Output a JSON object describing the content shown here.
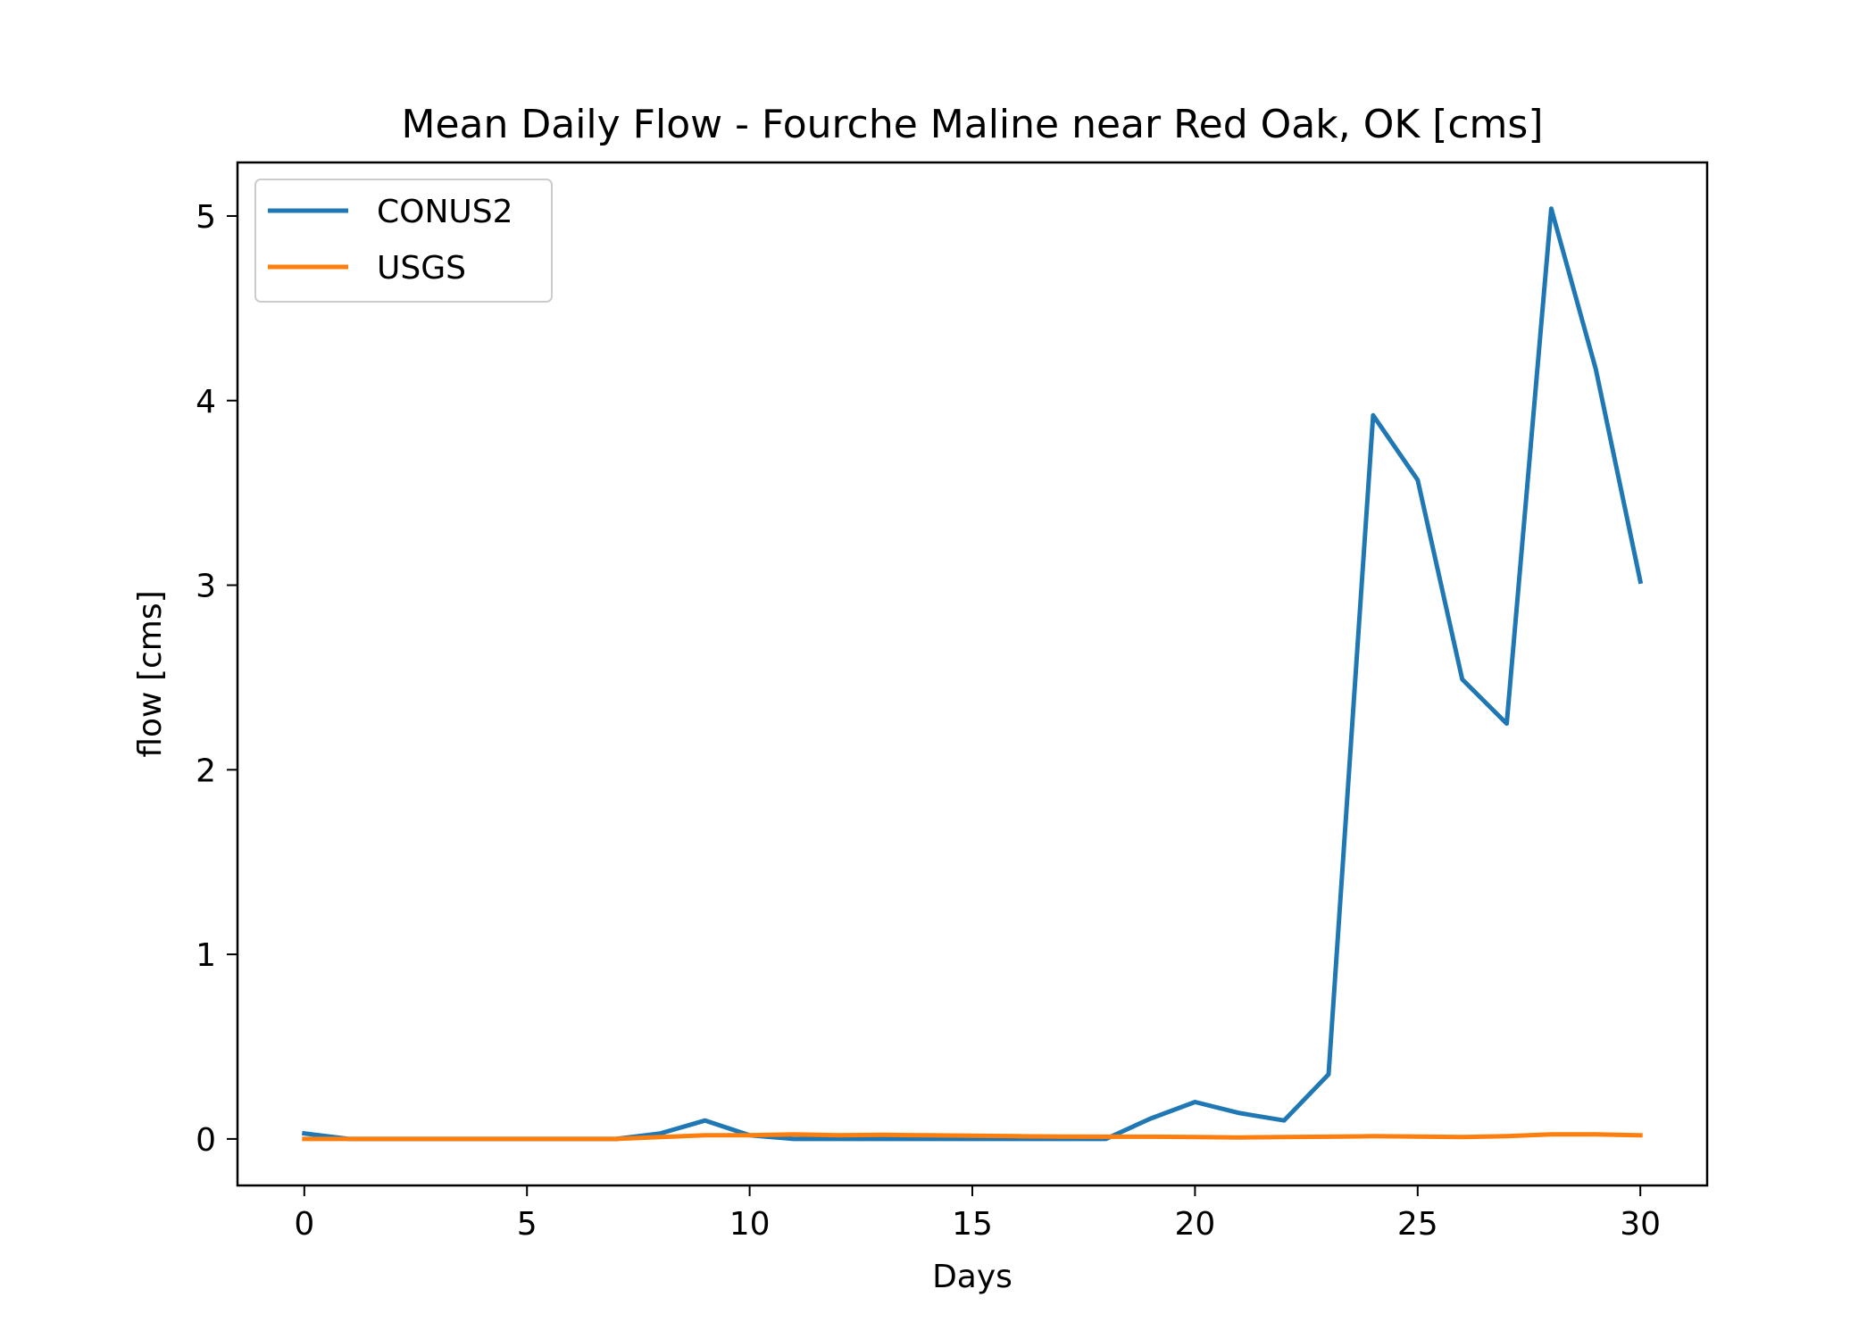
{
  "chart_data": {
    "type": "line",
    "title": "Mean Daily Flow - Fourche Maline near Red Oak, OK [cms]",
    "xlabel": "Days",
    "ylabel": "flow [cms]",
    "xlim": [
      -1.5,
      31.5
    ],
    "ylim": [
      -0.252,
      5.29
    ],
    "xticks": [
      0,
      5,
      10,
      15,
      20,
      25,
      30
    ],
    "yticks": [
      0,
      1,
      2,
      3,
      4,
      5
    ],
    "grid": false,
    "legend_position": "top-left",
    "x": [
      0,
      1,
      2,
      3,
      4,
      5,
      6,
      7,
      8,
      9,
      10,
      11,
      12,
      13,
      14,
      15,
      16,
      17,
      18,
      19,
      20,
      21,
      22,
      23,
      24,
      25,
      26,
      27,
      28,
      29,
      30
    ],
    "series": [
      {
        "name": "CONUS2",
        "color": "#1f77b4",
        "values": [
          0.03,
          0.0,
          0.0,
          0.0,
          0.0,
          0.0,
          0.0,
          0.0,
          0.03,
          0.1,
          0.02,
          0.0,
          0.0,
          0.0,
          0.0,
          0.0,
          0.0,
          0.0,
          0.0,
          0.11,
          0.2,
          0.14,
          0.1,
          0.35,
          3.92,
          3.57,
          2.49,
          2.25,
          5.04,
          4.17,
          3.02
        ]
      },
      {
        "name": "USGS",
        "color": "#ff7f0e",
        "values": [
          0.0,
          0.0,
          0.0,
          0.0,
          0.0,
          0.0,
          0.0,
          0.0,
          0.01,
          0.02,
          0.02,
          0.025,
          0.02,
          0.022,
          0.02,
          0.018,
          0.015,
          0.013,
          0.012,
          0.012,
          0.01,
          0.008,
          0.01,
          0.012,
          0.015,
          0.013,
          0.01,
          0.015,
          0.025,
          0.025,
          0.02
        ]
      }
    ]
  }
}
